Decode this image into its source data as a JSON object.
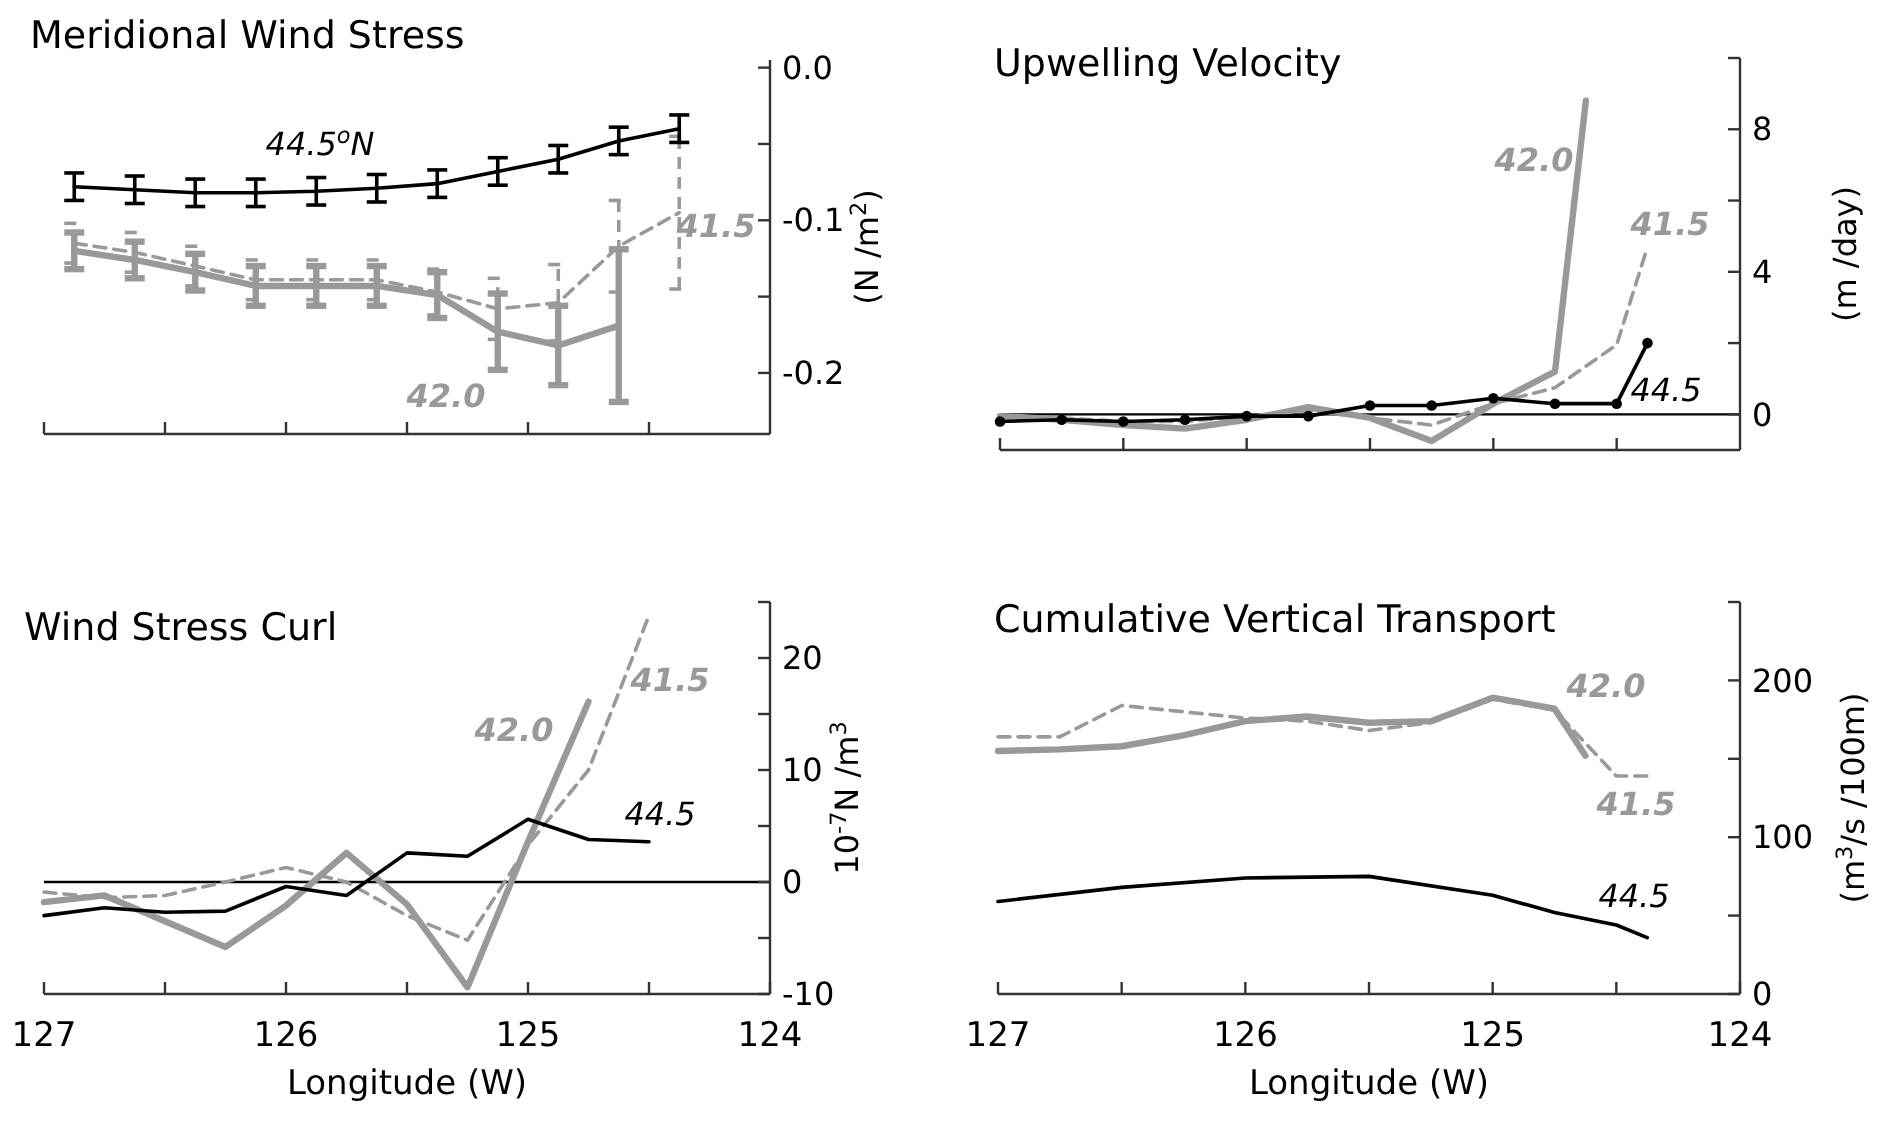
{
  "chart_data": [
    {
      "type": "line",
      "title": "Meridional Wind Stress",
      "ylabel": "(N /m$^{2}$)",
      "xlim": [
        127,
        124
      ],
      "ylim": [
        -0.24,
        0.005
      ],
      "tick_labels": "y",
      "xticks": [
        {
          "value": 127,
          "label": null
        },
        {
          "value": 126.5,
          "label": null
        },
        {
          "value": 126,
          "label": null
        },
        {
          "value": 125.5,
          "label": null
        },
        {
          "value": 125,
          "label": null
        },
        {
          "value": 124.5,
          "label": null
        }
      ],
      "yticks": [
        {
          "value": 0,
          "label": "0.0"
        },
        {
          "value": -0.05,
          "label": null
        },
        -0.1,
        {
          "value": -0.15,
          "label": null
        },
        -0.2
      ],
      "series": [
        {
          "name": "44.5$^{o}$N",
          "color": "#000000",
          "line_style": "solid",
          "x": [
            126.875,
            126.625,
            126.375,
            126.125,
            125.875,
            125.625,
            125.375,
            125.125,
            124.875,
            124.625,
            124.375
          ],
          "values": [
            -0.078,
            -0.08,
            -0.082,
            -0.082,
            -0.081,
            -0.079,
            -0.076,
            -0.068,
            -0.06,
            -0.048,
            -0.04
          ],
          "errors": [
            0.009,
            0.009,
            0.009,
            0.009,
            0.009,
            0.009,
            0.009,
            0.009,
            0.009,
            0.009,
            0.009
          ]
        },
        {
          "name": "42.0",
          "color": "#999999",
          "line_style": "solid",
          "x": [
            126.875,
            126.625,
            126.375,
            126.125,
            125.875,
            125.625,
            125.375,
            125.125,
            124.875,
            124.625
          ],
          "values": [
            -0.12,
            -0.126,
            -0.134,
            -0.143,
            -0.143,
            -0.143,
            -0.149,
            -0.173,
            -0.182,
            -0.169
          ],
          "errors": [
            0.012,
            0.012,
            0.012,
            0.013,
            0.013,
            0.013,
            0.015,
            0.025,
            0.026,
            0.05
          ]
        },
        {
          "name": "41.5",
          "color": "#999999",
          "line_style": "dashed",
          "x": [
            126.875,
            126.625,
            126.375,
            126.125,
            125.875,
            125.625,
            125.375,
            125.125,
            124.875,
            124.625,
            124.375
          ],
          "values": [
            -0.115,
            -0.121,
            -0.13,
            -0.139,
            -0.139,
            -0.139,
            -0.147,
            -0.158,
            -0.154,
            -0.117,
            -0.095
          ],
          "errors": [
            0.013,
            0.013,
            0.013,
            0.013,
            0.013,
            0.013,
            0.015,
            0.02,
            0.025,
            0.03,
            0.05
          ]
        }
      ]
    },
    {
      "type": "line",
      "title": "Upwelling Velocity",
      "ylabel": "(m /day)",
      "xlim": [
        127,
        124
      ],
      "ylim": [
        -1,
        10
      ],
      "tick_labels": "y",
      "xticks": [
        {
          "value": 127,
          "label": null
        },
        {
          "value": 126.5,
          "label": null
        },
        {
          "value": 126,
          "label": null
        },
        {
          "value": 125.5,
          "label": null
        },
        {
          "value": 125,
          "label": null
        },
        {
          "value": 124.5,
          "label": null
        }
      ],
      "yticks": [
        0,
        {
          "value": 2,
          "label": null
        },
        4,
        {
          "value": 6,
          "label": null
        },
        8,
        {
          "value": 10,
          "label": null
        }
      ],
      "ref_lines": [
        {
          "axis": "y",
          "value": 0,
          "color": "#000000"
        }
      ],
      "series": [
        {
          "name": "44.5",
          "color": "#000000",
          "line_style": "solid",
          "marker": "circle",
          "x": [
            127,
            126.75,
            126.5,
            126.25,
            126,
            125.75,
            125.5,
            125.25,
            125,
            124.75,
            124.5,
            124.375
          ],
          "values": [
            -0.2,
            -0.15,
            -0.2,
            -0.15,
            -0.05,
            -0.05,
            0.25,
            0.25,
            0.45,
            0.3,
            0.3,
            2.0
          ]
        },
        {
          "name": "42.0",
          "color": "#999999",
          "line_style": "solid",
          "x": [
            127,
            126.75,
            126.5,
            126.25,
            126,
            125.75,
            125.5,
            125.25,
            125,
            124.75,
            124.625
          ],
          "values": [
            -0.05,
            -0.15,
            -0.3,
            -0.4,
            -0.15,
            0.2,
            -0.1,
            -0.75,
            0.3,
            1.2,
            8.8
          ]
        },
        {
          "name": "41.5",
          "color": "#999999",
          "line_style": "dashed",
          "x": [
            127,
            126.75,
            126.5,
            126.25,
            126,
            125.75,
            125.5,
            125.25,
            125,
            124.75,
            124.5,
            124.375
          ],
          "values": [
            -0.05,
            -0.1,
            -0.2,
            -0.2,
            -0.05,
            0.1,
            -0.1,
            -0.3,
            0.3,
            0.75,
            1.95,
            4.7
          ]
        }
      ]
    },
    {
      "type": "line",
      "title": "Wind Stress Curl",
      "xlabel": "Longitude (W)",
      "ylabel": "10$^{-7}$N /m$^{3}$",
      "xlim": [
        127,
        124
      ],
      "ylim": [
        -10,
        25
      ],
      "xticks": [
        127,
        {
          "value": 126.5,
          "label": null
        },
        126,
        {
          "value": 125.5,
          "label": null
        },
        125,
        {
          "value": 124.5,
          "label": null
        },
        124
      ],
      "yticks": [
        -10,
        {
          "value": -5,
          "label": null
        },
        0,
        {
          "value": 5,
          "label": null
        },
        10,
        {
          "value": 15,
          "label": null
        },
        20,
        {
          "value": 25,
          "label": null
        }
      ],
      "ref_lines": [
        {
          "axis": "y",
          "value": 0,
          "color": "#000000"
        }
      ],
      "series": [
        {
          "name": "44.5",
          "color": "#000000",
          "line_style": "solid",
          "x": [
            127,
            126.75,
            126.5,
            126.25,
            126,
            125.75,
            125.5,
            125.25,
            125,
            124.75,
            124.5
          ],
          "values": [
            -3.0,
            -2.3,
            -2.7,
            -2.6,
            -0.4,
            -1.2,
            2.6,
            2.3,
            5.6,
            3.8,
            3.6
          ]
        },
        {
          "name": "42.0",
          "color": "#999999",
          "line_style": "solid",
          "x": [
            127,
            126.75,
            126.25,
            126,
            125.75,
            125.5,
            125.25,
            125,
            124.75
          ],
          "values": [
            -1.8,
            -1.2,
            -5.8,
            -2.1,
            2.6,
            -2.0,
            -9.4,
            3.6,
            16.1
          ]
        },
        {
          "name": "41.5",
          "color": "#999999",
          "line_style": "dashed",
          "x": [
            127,
            126.75,
            126.5,
            126.25,
            126,
            125.75,
            125.5,
            125.25,
            125,
            124.75,
            124.5
          ],
          "values": [
            -0.9,
            -1.4,
            -1.2,
            0,
            1.3,
            0,
            -3.0,
            -5.2,
            3.3,
            10,
            23.8
          ]
        }
      ]
    },
    {
      "type": "line",
      "title": "Cumulative Vertical Transport",
      "xlabel": "Longitude (W)",
      "ylabel": "(m$^{3}$/s /100m)",
      "xlim": [
        127,
        124
      ],
      "ylim": [
        0,
        250
      ],
      "xticks": [
        127,
        {
          "value": 126.5,
          "label": null
        },
        126,
        {
          "value": 125.5,
          "label": null
        },
        125,
        {
          "value": 124.5,
          "label": null
        },
        124
      ],
      "yticks": [
        0,
        {
          "value": 50,
          "label": null
        },
        100,
        {
          "value": 150,
          "label": null
        },
        200,
        {
          "value": 250,
          "label": null
        }
      ],
      "series": [
        {
          "name": "44.5",
          "color": "#000000",
          "line_style": "solid",
          "x": [
            127,
            126.5,
            126,
            125.5,
            125,
            124.75,
            124.5,
            124.375
          ],
          "values": [
            59,
            68,
            74,
            75,
            63,
            52,
            44,
            36
          ]
        },
        {
          "name": "42.0",
          "color": "#999999",
          "line_style": "solid",
          "x": [
            127,
            126.75,
            126.5,
            126.25,
            126,
            125.75,
            125.5,
            125.25,
            125,
            124.75,
            124.625
          ],
          "values": [
            155,
            156,
            158,
            165,
            174,
            177,
            173,
            174,
            189,
            182,
            152
          ]
        },
        {
          "name": "41.5",
          "color": "#999999",
          "line_style": "dashed",
          "x": [
            127,
            126.75,
            126.5,
            126,
            125.75,
            125.5,
            125.25,
            125,
            124.75,
            124.5,
            124.375
          ],
          "values": [
            164,
            164,
            184,
            176,
            174,
            168,
            173,
            188,
            181,
            139,
            139
          ]
        }
      ]
    }
  ]
}
